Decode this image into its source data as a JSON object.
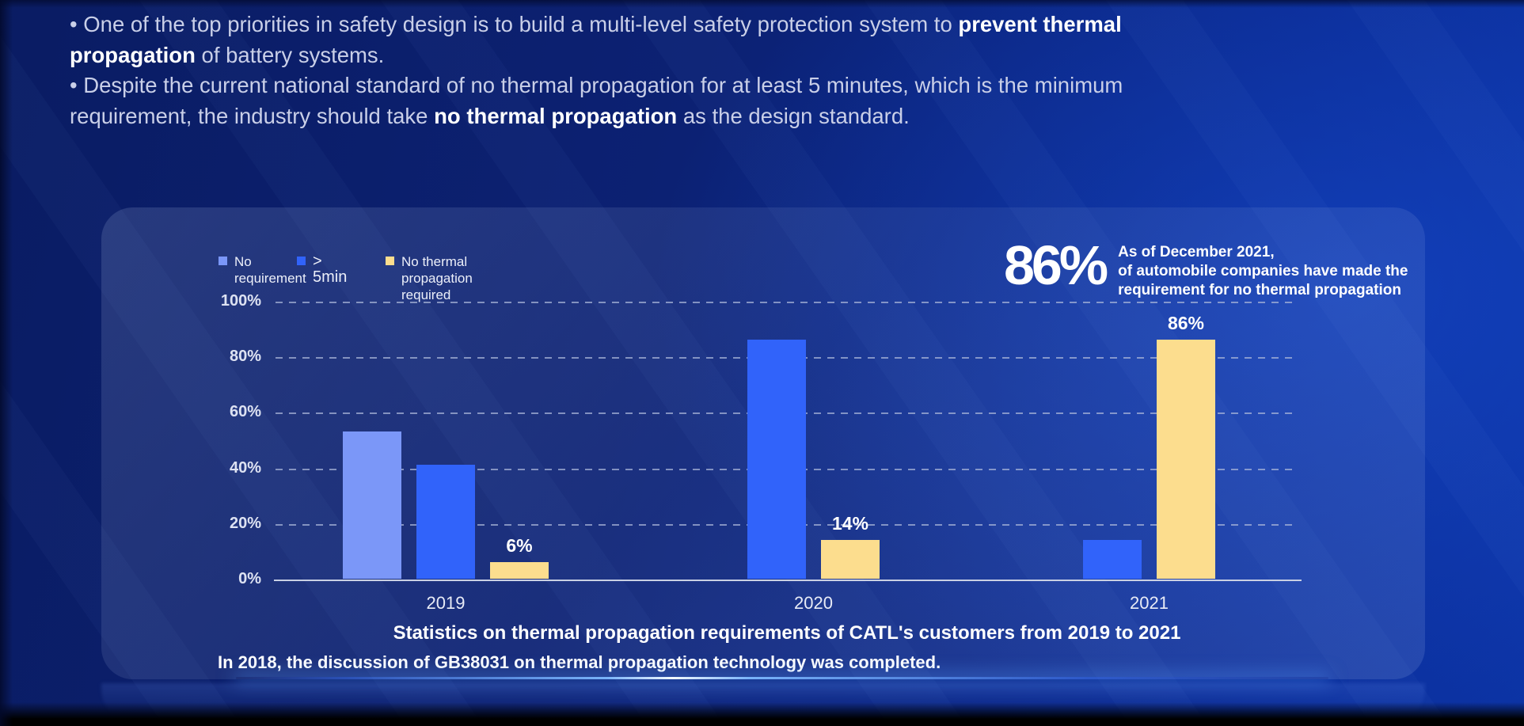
{
  "intro": {
    "bullets": [
      {
        "lines": [
          [
            {
              "t": "• One of the top priorities in safety design is to build a multi-level safety protection system to ",
              "b": false
            },
            {
              "t": "prevent thermal",
              "b": true
            }
          ],
          [
            {
              "t": "propagation",
              "b": true
            },
            {
              "t": " of battery systems.",
              "b": false
            }
          ]
        ]
      },
      {
        "lines": [
          [
            {
              "t": "• Despite the current national standard of no thermal propagation for at least 5 minutes, which is the minimum",
              "b": false
            }
          ],
          [
            {
              "t": "requirement, the industry should take ",
              "b": false
            },
            {
              "t": "no thermal propagation",
              "b": true
            },
            {
              "t": " as the design standard.",
              "b": false
            }
          ]
        ]
      }
    ]
  },
  "stat": {
    "value": "86%",
    "desc_lines": [
      "As of December 2021,",
      "of automobile companies have made the",
      "requirement for no thermal propagation"
    ]
  },
  "chart_data": {
    "type": "bar",
    "title": "Statistics on thermal propagation requirements of CATL's customers from 2019 to 2021",
    "categories": [
      "2019",
      "2020",
      "2021"
    ],
    "series": [
      {
        "name": "No requirement",
        "color": "#7B97F8",
        "values": [
          53,
          0,
          0
        ]
      },
      {
        "name": "> 5min",
        "color": "#3163FA",
        "values": [
          41,
          86,
          14
        ]
      },
      {
        "name": "No thermal propagation required",
        "color": "#FCDD8E",
        "values": [
          6,
          14,
          86
        ]
      }
    ],
    "groups": [
      {
        "category": "2019",
        "bars": [
          {
            "series": "No requirement",
            "value": 53
          },
          {
            "series": "> 5min",
            "value": 41
          },
          {
            "series": "No thermal propagation required",
            "value": 6,
            "label": "6%"
          }
        ]
      },
      {
        "category": "2020",
        "bars": [
          {
            "series": "> 5min",
            "value": 86
          },
          {
            "series": "No thermal propagation required",
            "value": 14,
            "label": "14%"
          }
        ]
      },
      {
        "category": "2021",
        "bars": [
          {
            "series": "> 5min",
            "value": 14
          },
          {
            "series": "No thermal propagation required",
            "value": 86,
            "label": "86%"
          }
        ]
      }
    ],
    "yticks": [
      {
        "label": "0%",
        "value": 0
      },
      {
        "label": "20%",
        "value": 20
      },
      {
        "label": "40%",
        "value": 40
      },
      {
        "label": "60%",
        "value": 60
      },
      {
        "label": "80%",
        "value": 80
      },
      {
        "label": "100%",
        "value": 100
      }
    ],
    "ylim": [
      0,
      100
    ],
    "grid": "dashed-horizontal",
    "legend_position": "top-left",
    "xlabel": "",
    "ylabel": ""
  },
  "footnote": "In 2018, the discussion of GB38031 on thermal propagation technology was completed.",
  "colors": {
    "background_dark": "#0c2173",
    "background_bright": "#0c33a4",
    "card_overlay": "rgba(205,222,255,0.12)",
    "text_soft": "#c9cfe8",
    "text_white": "#ffffff",
    "axis_label": "#dde2f2",
    "glow_accent": "#7dbaff"
  }
}
